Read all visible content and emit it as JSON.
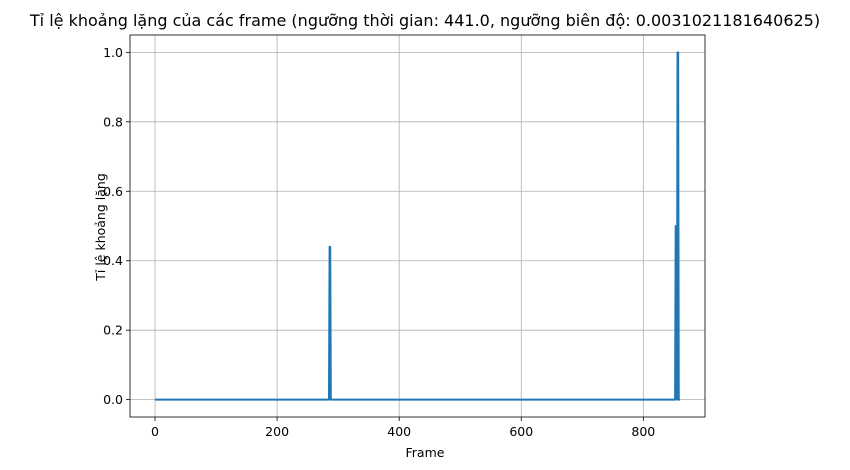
{
  "chart_data": {
    "type": "line",
    "title": "Tỉ lệ khoảng lặng của các frame (ngưỡng thời gian: 441.0, ngưỡng biên độ: 0.0031021181640625)",
    "xlabel": "Frame",
    "ylabel": "Tỉ lệ khoảng lặng",
    "xlim": [
      -41,
      901
    ],
    "ylim": [
      -0.05,
      1.05
    ],
    "xticks": [
      0,
      200,
      400,
      600,
      800
    ],
    "xtick_labels": [
      "0",
      "200",
      "400",
      "600",
      "800"
    ],
    "yticks": [
      0.0,
      0.2,
      0.4,
      0.6,
      0.8,
      1.0
    ],
    "ytick_labels": [
      "0.0",
      "0.2",
      "0.4",
      "0.6",
      "0.8",
      "1.0"
    ],
    "grid": true,
    "color": "#1f77b4",
    "series": [
      {
        "x": [
          0,
          285,
          286,
          287,
          288,
          852,
          853,
          854,
          855,
          856,
          857,
          858,
          859,
          860
        ],
        "y": [
          0,
          0,
          0.44,
          0.44,
          0,
          0,
          0.5,
          0.5,
          0,
          1.0,
          1.0,
          0,
          0,
          0
        ]
      }
    ]
  }
}
